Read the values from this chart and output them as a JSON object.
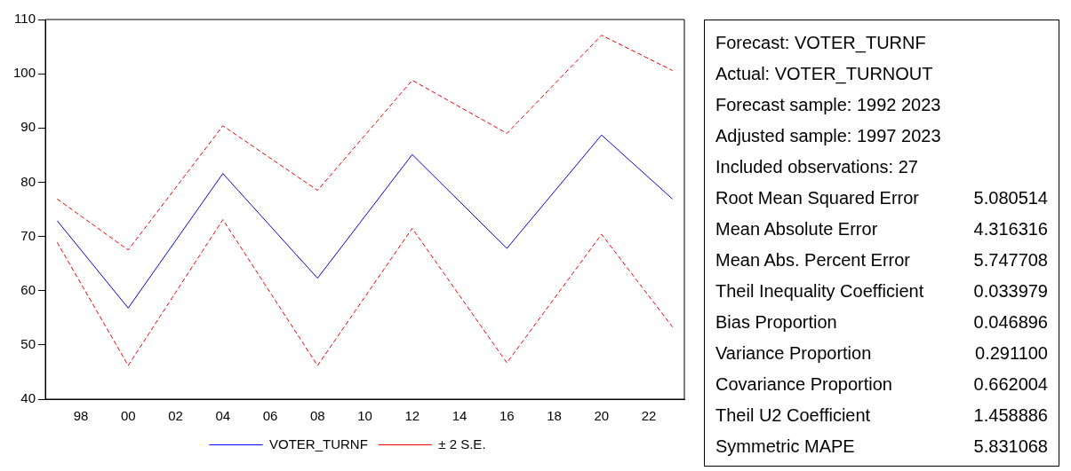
{
  "chart_data": [
    {
      "type": "line",
      "x": [
        1997,
        2000,
        2004,
        2008,
        2012,
        2016,
        2020,
        2023
      ],
      "xlim": [
        1996.5,
        2023.5
      ],
      "xticks": [
        {
          "value": 1996.5,
          "label": null
        },
        {
          "value": 1998,
          "label": "98"
        },
        {
          "value": 2000,
          "label": "00"
        },
        {
          "value": 2002,
          "label": "02"
        },
        {
          "value": 2004,
          "label": "04"
        },
        {
          "value": 2006,
          "label": "06"
        },
        {
          "value": 2008,
          "label": "08"
        },
        {
          "value": 2010,
          "label": "10"
        },
        {
          "value": 2012,
          "label": "12"
        },
        {
          "value": 2014,
          "label": "14"
        },
        {
          "value": 2016,
          "label": "16"
        },
        {
          "value": 2018,
          "label": "18"
        },
        {
          "value": 2020,
          "label": "20"
        },
        {
          "value": 2022,
          "label": "22"
        },
        {
          "value": 2023.5,
          "label": null
        }
      ],
      "ylim": [
        40,
        110
      ],
      "yticks": [
        40,
        50,
        60,
        70,
        80,
        90,
        100,
        110
      ],
      "grid": false,
      "legend": "bottom",
      "marker": "none",
      "series": [
        {
          "name": "VOTER_TURNF",
          "color": "#0000ff",
          "line_style": "solid",
          "values": [
            72.9,
            56.8,
            81.6,
            62.3,
            85.1,
            67.8,
            88.7,
            76.9
          ]
        },
        {
          "name": "± 2 S.E.",
          "color": "#ff0000",
          "line_style": "dashed",
          "values": [
            76.9,
            67.5,
            90.4,
            78.5,
            98.8,
            89.0,
            107.1,
            100.6
          ]
        },
        {
          "color": "#ff0000",
          "line_style": "dashed",
          "values": [
            68.9,
            46.2,
            73.1,
            46.2,
            71.5,
            46.7,
            70.4,
            53.3
          ]
        }
      ]
    },
    {
      "type": "other",
      "annotations": [
        "Forecast: VOTER_TURNF",
        "Actual: VOTER_TURNOUT",
        "Forecast sample: 1992 2023",
        "Adjusted sample: 1997 2023",
        "Included observations: 27"
      ],
      "categories": [
        "Root Mean Squared Error",
        "Mean Absolute Error",
        "Mean Abs. Percent Error",
        "Theil Inequality Coefficient",
        "Bias Proportion",
        "Variance Proportion",
        "Covariance Proportion",
        "Theil U2 Coefficient",
        "Symmetric MAPE"
      ],
      "value_labels": [
        "5.080514",
        "4.316316",
        "5.747708",
        "0.033979",
        "0.046896",
        "0.291100",
        "0.662004",
        "1.458886",
        "5.831068"
      ]
    }
  ]
}
